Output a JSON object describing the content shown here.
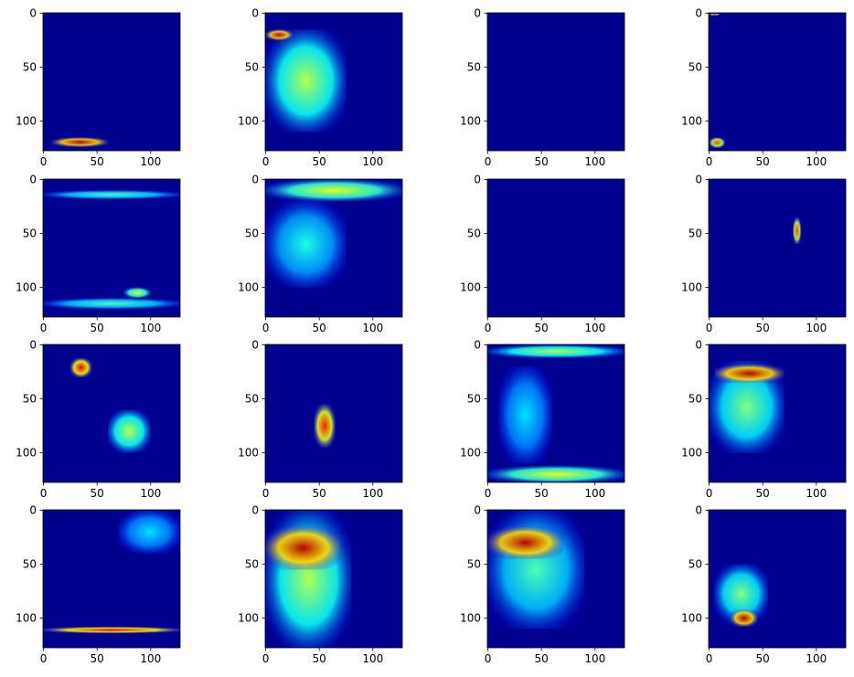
{
  "chart_data": {
    "type": "heatmap",
    "rows": 4,
    "cols": 4,
    "colormap": "jet",
    "image_width": 128,
    "image_height": 128,
    "x_ticks": [
      "0",
      "50",
      "100"
    ],
    "y_ticks": [
      "0",
      "50",
      "100"
    ],
    "x_tick_values": [
      0,
      50,
      100
    ],
    "y_tick_values": [
      0,
      50,
      100
    ],
    "xlim": [
      -0.5,
      127.5
    ],
    "ylim": [
      127.5,
      -0.5
    ],
    "colors": {
      "background": "#00008f",
      "axis": "#000000"
    },
    "panels": [
      {
        "id": 1,
        "description_level": "mostly-low",
        "hotspots": [
          {
            "x": [
              8,
              60
            ],
            "y": [
              115,
              124
            ],
            "v": 0.95
          }
        ]
      },
      {
        "id": 2,
        "description_level": "high-left",
        "hotspots": [
          {
            "x": [
              0,
              75
            ],
            "y": [
              15,
              110
            ],
            "v": 0.55
          },
          {
            "x": [
              0,
              25
            ],
            "y": [
              15,
              25
            ],
            "v": 0.95
          }
        ]
      },
      {
        "id": 3,
        "description_level": "all-low",
        "hotspots": []
      },
      {
        "id": 4,
        "description_level": "sparse",
        "hotspots": [
          {
            "x": [
              0,
              15
            ],
            "y": [
              115,
              125
            ],
            "v": 0.8
          },
          {
            "x": [
              0,
              10
            ],
            "y": [
              0,
              2
            ],
            "v": 0.95
          }
        ]
      },
      {
        "id": 5,
        "description_level": "edge-bands",
        "hotspots": [
          {
            "x": [
              0,
              128
            ],
            "y": [
              10,
              18
            ],
            "v": 0.45
          },
          {
            "x": [
              0,
              128
            ],
            "y": [
              110,
              120
            ],
            "v": 0.45
          },
          {
            "x": [
              75,
              100
            ],
            "y": [
              100,
              110
            ],
            "v": 0.6
          }
        ]
      },
      {
        "id": 6,
        "description_level": "wide-medium",
        "hotspots": [
          {
            "x": [
              0,
              128
            ],
            "y": [
              0,
              20
            ],
            "v": 0.6
          },
          {
            "x": [
              0,
              75
            ],
            "y": [
              20,
              100
            ],
            "v": 0.4
          }
        ]
      },
      {
        "id": 7,
        "description_level": "all-low",
        "hotspots": []
      },
      {
        "id": 8,
        "description_level": "small-blob",
        "hotspots": [
          {
            "x": [
              78,
              86
            ],
            "y": [
              35,
              60
            ],
            "v": 0.8
          }
        ]
      },
      {
        "id": 9,
        "description_level": "multi-blob",
        "hotspots": [
          {
            "x": [
              25,
              45
            ],
            "y": [
              12,
              30
            ],
            "v": 0.9
          },
          {
            "x": [
              60,
              100
            ],
            "y": [
              60,
              100
            ],
            "v": 0.55
          }
        ]
      },
      {
        "id": 10,
        "description_level": "center-blob",
        "hotspots": [
          {
            "x": [
              45,
              65
            ],
            "y": [
              55,
              95
            ],
            "v": 0.85
          }
        ]
      },
      {
        "id": 11,
        "description_level": "bands",
        "hotspots": [
          {
            "x": [
              0,
              128
            ],
            "y": [
              0,
              12
            ],
            "v": 0.55
          },
          {
            "x": [
              0,
              128
            ],
            "y": [
              112,
              128
            ],
            "v": 0.6
          },
          {
            "x": [
              10,
              60
            ],
            "y": [
              20,
              110
            ],
            "v": 0.35
          }
        ]
      },
      {
        "id": 12,
        "description_level": "high-left",
        "hotspots": [
          {
            "x": [
              0,
              70
            ],
            "y": [
              15,
              100
            ],
            "v": 0.5
          },
          {
            "x": [
              5,
              70
            ],
            "y": [
              18,
              35
            ],
            "v": 0.95
          }
        ]
      },
      {
        "id": 13,
        "description_level": "lines",
        "hotspots": [
          {
            "x": [
              0,
              128
            ],
            "y": [
              108,
              114
            ],
            "v": 0.9
          },
          {
            "x": [
              70,
              128
            ],
            "y": [
              0,
              40
            ],
            "v": 0.35
          }
        ]
      },
      {
        "id": 14,
        "description_level": "strong-left",
        "hotspots": [
          {
            "x": [
              0,
              80
            ],
            "y": [
              0,
              128
            ],
            "v": 0.55
          },
          {
            "x": [
              0,
              70
            ],
            "y": [
              15,
              55
            ],
            "v": 0.95
          }
        ]
      },
      {
        "id": 15,
        "description_level": "strong-left",
        "hotspots": [
          {
            "x": [
              0,
              90
            ],
            "y": [
              0,
              110
            ],
            "v": 0.45
          },
          {
            "x": [
              0,
              70
            ],
            "y": [
              15,
              45
            ],
            "v": 0.95
          }
        ]
      },
      {
        "id": 16,
        "description_level": "lower-blob",
        "hotspots": [
          {
            "x": [
              5,
              55
            ],
            "y": [
              50,
              105
            ],
            "v": 0.5
          },
          {
            "x": [
              20,
              45
            ],
            "y": [
              92,
              108
            ],
            "v": 0.95
          }
        ]
      }
    ]
  }
}
